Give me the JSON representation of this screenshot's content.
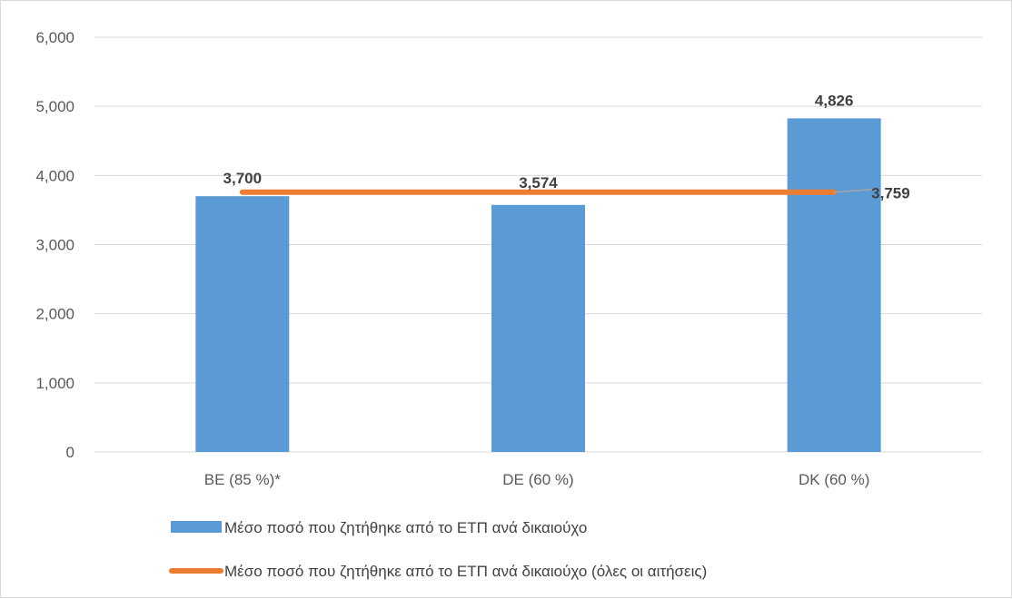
{
  "chart_data": {
    "type": "bar",
    "categories": [
      "BE (85 %)*",
      "DE (60 %)",
      "DK (60 %)"
    ],
    "series": [
      {
        "name": "Μέσο ποσό που ζητήθηκε από το ΕΤΠ ανά δικαιούχο",
        "kind": "bar",
        "color": "#5b9bd5",
        "values": [
          3700,
          3574,
          4826
        ],
        "labels": [
          "3,700",
          "3,574",
          "4,826"
        ]
      },
      {
        "name": "Μέσο ποσό που ζητήθηκε από το ΕΤΠ ανά δικαιούχο (όλες οι αιτήσεις)",
        "kind": "line",
        "color": "#ed7d31",
        "values": [
          3759,
          3759,
          3759
        ],
        "label": "3,759"
      }
    ],
    "ylim": [
      0,
      6000
    ],
    "yticks": [
      0,
      1000,
      2000,
      3000,
      4000,
      5000,
      6000
    ],
    "ytick_labels": [
      "0",
      "1,000",
      "2,000",
      "3,000",
      "4,000",
      "5,000",
      "6,000"
    ],
    "grid": true,
    "legend_position": "bottom-left",
    "title": "",
    "xlabel": "",
    "ylabel": ""
  }
}
